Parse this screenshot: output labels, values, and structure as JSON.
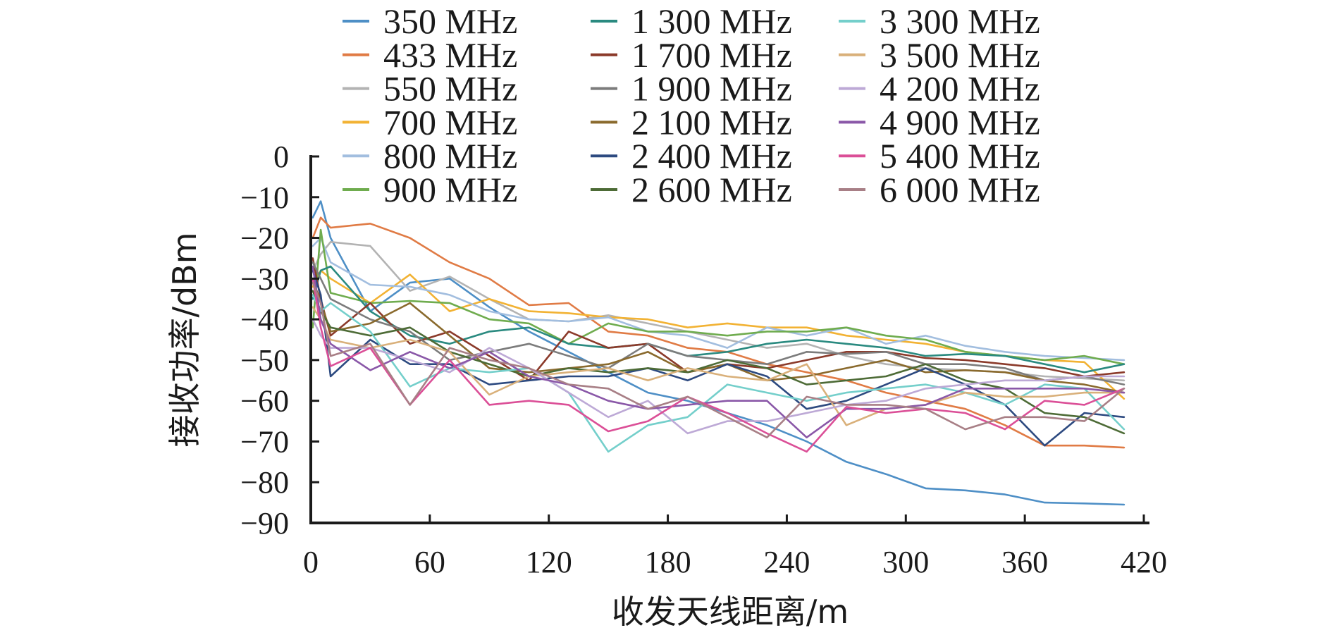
{
  "chart_data": {
    "type": "line",
    "xlabel": "收发天线距离/m",
    "ylabel": "接收功率/dBm",
    "xlim": [
      0,
      420
    ],
    "ylim": [
      -90,
      0
    ],
    "xticks": [
      0,
      60,
      120,
      180,
      240,
      300,
      360,
      420
    ],
    "yticks": [
      0,
      -10,
      -20,
      -30,
      -40,
      -50,
      -60,
      -70,
      -80,
      -90
    ],
    "xtick_labels": [
      "0",
      "60",
      "120",
      "180",
      "240",
      "300",
      "360",
      "420"
    ],
    "ytick_labels": [
      "0",
      "−10",
      "−20",
      "−30",
      "−40",
      "−50",
      "−60",
      "−70",
      "−80",
      "−90"
    ],
    "grid": false,
    "legend_position": "top",
    "x": [
      1,
      5,
      10,
      30,
      50,
      70,
      90,
      110,
      130,
      150,
      170,
      190,
      210,
      230,
      250,
      270,
      290,
      310,
      330,
      350,
      370,
      390,
      410
    ],
    "series": [
      {
        "name": "350 MHz",
        "color": "#4e8fc6",
        "values": [
          -15,
          -11,
          -20,
          -38,
          -31,
          -30,
          -37,
          -43,
          -48,
          -53,
          -58,
          -60,
          -63,
          -66,
          -70,
          -75,
          -78,
          -81.5,
          -82,
          -83,
          -85,
          -85.2,
          -85.5
        ]
      },
      {
        "name": "433 MHz",
        "color": "#e07b45",
        "values": [
          -20,
          -15,
          -17.5,
          -16.5,
          -20,
          -26,
          -30,
          -36.5,
          -36,
          -43,
          -44,
          -47,
          -48,
          -51,
          -53,
          -55,
          -58,
          -60,
          -62,
          -66,
          -71,
          -71,
          -71.5
        ]
      },
      {
        "name": "550 MHz",
        "color": "#b3b3b3",
        "values": [
          -28,
          -24,
          -21,
          -22,
          -33,
          -29.5,
          -35,
          -40,
          -40.5,
          -39,
          -41,
          -43,
          -45,
          -47,
          -46,
          -49,
          -51,
          -52,
          -52.5,
          -53,
          -54,
          -54.5,
          -55
        ]
      },
      {
        "name": "700 MHz",
        "color": "#f2b233",
        "values": [
          -32,
          -28,
          -30,
          -36,
          -29,
          -38,
          -35,
          -38,
          -38.5,
          -39.5,
          -40,
          -42,
          -41,
          -42,
          -42,
          -44,
          -45,
          -46,
          -48,
          -49,
          -50,
          -50.5,
          -59.5
        ]
      },
      {
        "name": "800 MHz",
        "color": "#a2bedf",
        "values": [
          -22,
          -20,
          -26,
          -31.5,
          -32,
          -34,
          -38,
          -40,
          -40.5,
          -39.5,
          -43,
          -44,
          -47,
          -42,
          -44,
          -42,
          -46,
          -44,
          -46.5,
          -48,
          -49,
          -49.5,
          -50
        ]
      },
      {
        "name": "900 MHz",
        "color": "#6fac4e",
        "values": [
          -42,
          -18,
          -33.5,
          -36,
          -35.5,
          -36,
          -40,
          -41,
          -46,
          -41,
          -43,
          -43,
          -44,
          -43,
          -43,
          -42,
          -44,
          -45,
          -48,
          -49,
          -50,
          -49,
          -51
        ]
      },
      {
        "name": "1 300 MHz",
        "color": "#2a8a80",
        "values": [
          -35,
          -28,
          -27,
          -38,
          -44,
          -46,
          -43,
          -42,
          -46,
          -47,
          -46,
          -49,
          -48,
          -46,
          -45,
          -46,
          -47,
          -49,
          -48.5,
          -49,
          -51,
          -53,
          -51
        ]
      },
      {
        "name": "1 700 MHz",
        "color": "#8b3a2a",
        "values": [
          -25,
          -35,
          -44,
          -36,
          -46,
          -43,
          -49,
          -55,
          -43,
          -47,
          -46,
          -53,
          -51,
          -52,
          -50,
          -48,
          -48,
          -49.5,
          -50,
          -51,
          -52,
          -54,
          -53
        ]
      },
      {
        "name": "1 900 MHz",
        "color": "#7c7c7c",
        "values": [
          -26,
          -30,
          -35,
          -40,
          -43,
          -50,
          -48,
          -46,
          -49,
          -52,
          -46,
          -49,
          -50,
          -51,
          -48,
          -48.5,
          -48,
          -51,
          -51,
          -52,
          -55,
          -54,
          -56
        ]
      },
      {
        "name": "2 100 MHz",
        "color": "#8a6a2d",
        "values": [
          -30,
          -36,
          -43,
          -41,
          -36,
          -44,
          -52,
          -53,
          -52,
          -51,
          -48,
          -53,
          -51,
          -55,
          -54,
          -52,
          -50,
          -53,
          -52.5,
          -53,
          -55,
          -56,
          -58
        ]
      },
      {
        "name": "2 400 MHz",
        "color": "#2d4a80",
        "values": [
          -28,
          -34,
          -54,
          -45,
          -51,
          -51,
          -56,
          -55,
          -54,
          -54,
          -52,
          -55,
          -51,
          -54,
          -62,
          -60,
          -56,
          -52,
          -56,
          -61,
          -71,
          -63,
          -64
        ]
      },
      {
        "name": "2 600 MHz",
        "color": "#4d6b36",
        "values": [
          -33,
          -38,
          -42,
          -44,
          -42,
          -48,
          -51,
          -54,
          -52,
          -53,
          -52,
          -53,
          -50,
          -52,
          -56,
          -55,
          -54,
          -51,
          -55,
          -57,
          -63,
          -64,
          -68
        ]
      },
      {
        "name": "3 300 MHz",
        "color": "#74cfcb",
        "values": [
          -34,
          -38,
          -36,
          -43,
          -56.5,
          -52,
          -53,
          -52,
          -58,
          -72.5,
          -66,
          -64,
          -56,
          -58,
          -60,
          -58,
          -57,
          -56,
          -58,
          -61,
          -56,
          -57,
          -67
        ]
      },
      {
        "name": "3 500 MHz",
        "color": "#d9b07a",
        "values": [
          -37,
          -40,
          -45,
          -47,
          -45,
          -48,
          -58.5,
          -54,
          -53,
          -52,
          -55,
          -52,
          -54,
          -55,
          -51,
          -66,
          -62,
          -61,
          -58,
          -59,
          -59,
          -58,
          -58
        ]
      },
      {
        "name": "4 200 MHz",
        "color": "#bda9d6",
        "values": [
          -40,
          -44,
          -47,
          -47,
          -50,
          -53,
          -47,
          -52,
          -58,
          -64,
          -60,
          -68,
          -65,
          -65,
          -63,
          -61,
          -60,
          -57,
          -56,
          -55,
          -55,
          -54,
          -54
        ]
      },
      {
        "name": "4 900 MHz",
        "color": "#8a58a8",
        "values": [
          -27,
          -40,
          -46,
          -52.5,
          -48,
          -52,
          -48,
          -54,
          -56,
          -60,
          -62,
          -61,
          -60,
          -60,
          -69,
          -62,
          -62,
          -61,
          -57,
          -57,
          -57,
          -57,
          -58
        ]
      },
      {
        "name": "5 400 MHz",
        "color": "#db4f97",
        "values": [
          -30,
          -42,
          -51.5,
          -47,
          -61,
          -50,
          -61,
          -60,
          -61,
          -67.5,
          -65,
          -59,
          -63,
          -68,
          -72.5,
          -61.5,
          -63,
          -62,
          -63,
          -67,
          -60,
          -61,
          -57
        ]
      },
      {
        "name": "6 000 MHz",
        "color": "#a87f86",
        "values": [
          -31,
          -36,
          -49,
          -46,
          -61,
          -47,
          -50,
          -52,
          -56,
          -57,
          -62,
          -59,
          -64,
          -69,
          -59,
          -61,
          -61,
          -62,
          -67,
          -64,
          -64,
          -65,
          -57
        ]
      }
    ]
  }
}
